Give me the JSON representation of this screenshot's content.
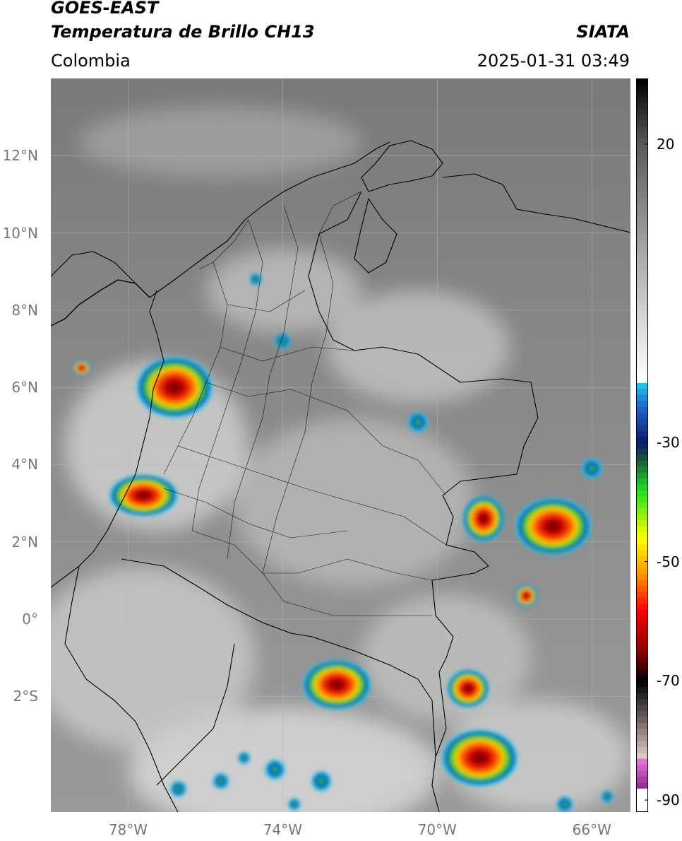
{
  "header": {
    "satellite": "GOES-EAST",
    "product": "Temperatura de Brillo CH13",
    "region": "Colombia",
    "agency": "SIATA",
    "datetime": "2025-01-31 03:49"
  },
  "map": {
    "extent": {
      "lon_min": -80,
      "lon_max": -65,
      "lat_min": -5,
      "lat_max": 14
    },
    "y_ticks": [
      {
        "lat": 12,
        "label": "12°N"
      },
      {
        "lat": 10,
        "label": "10°N"
      },
      {
        "lat": 8,
        "label": "8°N"
      },
      {
        "lat": 6,
        "label": "6°N"
      },
      {
        "lat": 4,
        "label": "4°N"
      },
      {
        "lat": 2,
        "label": "2°N"
      },
      {
        "lat": 0,
        "label": "0°"
      },
      {
        "lat": -2,
        "label": "2°S"
      }
    ],
    "x_ticks": [
      {
        "lon": -78,
        "label": "78°W"
      },
      {
        "lon": -74,
        "label": "74°W"
      },
      {
        "lon": -70,
        "label": "70°W"
      },
      {
        "lon": -66,
        "label": "66°W"
      }
    ],
    "grid": true,
    "base_colors": {
      "land": "#9e9e9e",
      "sea": "#707070",
      "cloud": "#dcdcdc"
    },
    "storm_cells": [
      {
        "id": "choco",
        "lon": -76.8,
        "lat": 6.0,
        "rx": 1.0,
        "ry": 0.8
      },
      {
        "id": "pacific-sw",
        "lon": -77.6,
        "lat": 3.2,
        "rx": 0.9,
        "ry": 0.55
      },
      {
        "id": "caribbean-islets",
        "lon": -79.2,
        "lat": 6.5,
        "rx": 0.25,
        "ry": 0.2
      },
      {
        "id": "vichada-guainia",
        "lon": -67.0,
        "lat": 2.4,
        "rx": 1.0,
        "ry": 0.75
      },
      {
        "id": "vichada-west",
        "lon": -68.8,
        "lat": 2.6,
        "rx": 0.55,
        "ry": 0.6
      },
      {
        "id": "guainia-south",
        "lon": -67.7,
        "lat": 0.6,
        "rx": 0.3,
        "ry": 0.3
      },
      {
        "id": "putumayo",
        "lon": -72.6,
        "lat": -1.7,
        "rx": 0.9,
        "ry": 0.65
      },
      {
        "id": "amazonas-east",
        "lon": -69.2,
        "lat": -1.8,
        "rx": 0.55,
        "ry": 0.5
      },
      {
        "id": "amazonas-south",
        "lon": -68.9,
        "lat": -3.6,
        "rx": 1.0,
        "ry": 0.75
      }
    ],
    "small_cells": [
      {
        "lon": -74.7,
        "lat": 8.8
      },
      {
        "lon": -74.0,
        "lat": 7.2
      },
      {
        "lon": -70.5,
        "lat": 5.1
      },
      {
        "lon": -75.0,
        "lat": -3.6
      },
      {
        "lon": -75.6,
        "lat": -4.2
      },
      {
        "lon": -74.2,
        "lat": -3.9
      },
      {
        "lon": -73.7,
        "lat": -4.8
      },
      {
        "lon": -76.7,
        "lat": -4.4
      },
      {
        "lon": -73.0,
        "lat": -4.2
      },
      {
        "lon": -65.6,
        "lat": -4.6
      },
      {
        "lon": -66.7,
        "lat": -4.8
      },
      {
        "lon": -66.0,
        "lat": 3.9
      }
    ]
  },
  "colorbar": {
    "tmin": -92,
    "tmax": 31,
    "ticks": [
      {
        "value": 20,
        "label": "20"
      },
      {
        "value": -30,
        "label": "-30"
      },
      {
        "value": -50,
        "label": "-50"
      },
      {
        "value": -70,
        "label": "-70"
      },
      {
        "value": -90,
        "label": "-90"
      }
    ],
    "stops": [
      {
        "t": -92,
        "color": "#ffffff"
      },
      {
        "t": -88.5,
        "color": "#ffffff"
      },
      {
        "t": -88,
        "color": "#8a2a8f"
      },
      {
        "t": -83,
        "color": "#e879d6"
      },
      {
        "t": -82.5,
        "color": "#d8c8c8"
      },
      {
        "t": -77,
        "color": "#7a6a6a"
      },
      {
        "t": -70,
        "color": "#000000"
      },
      {
        "t": -65,
        "color": "#8b0000"
      },
      {
        "t": -58,
        "color": "#ff0000"
      },
      {
        "t": -52,
        "color": "#ff9900"
      },
      {
        "t": -46,
        "color": "#ffff00"
      },
      {
        "t": -38,
        "color": "#22dd22"
      },
      {
        "t": -33,
        "color": "#1a5a3a"
      },
      {
        "t": -30,
        "color": "#0a1a6a"
      },
      {
        "t": -24,
        "color": "#2266cc"
      },
      {
        "t": -20,
        "color": "#22ccee"
      },
      {
        "t": -19.5,
        "color": "#ffffff"
      },
      {
        "t": 0,
        "color": "#b0b0b0"
      },
      {
        "t": 20,
        "color": "#5a5a5a"
      },
      {
        "t": 31,
        "color": "#000000"
      }
    ]
  }
}
